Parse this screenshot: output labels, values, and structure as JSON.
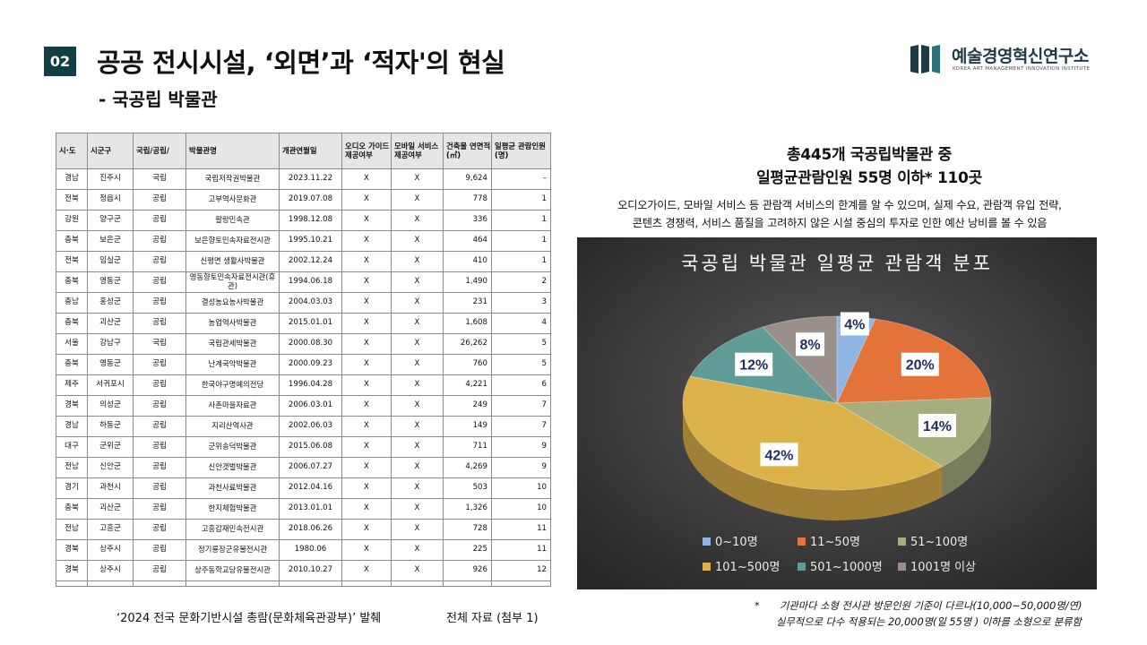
{
  "header": {
    "section_number": "02",
    "title": "공공 전시시설, ‘외면’과 ‘적자'의 현실",
    "subtitle": "- 국공립 박물관"
  },
  "logo": {
    "name": "예술경영혁신연구소",
    "sub": "KOREA ART MANAGEMENT INNOVATION INSTITUTE"
  },
  "table": {
    "headers": [
      "시·도",
      "시군구",
      "국립/공립/",
      "박물관명",
      "개관연월일",
      "오디오 가이드 제공여부",
      "모바일 서비스 제공여부",
      "건축물 연면적 (㎡)",
      "일평균 관람인원 (명)"
    ],
    "rows": [
      [
        "경남",
        "진주시",
        "국립",
        "국립저작권박물관",
        "2023.11.22",
        "X",
        "X",
        "9,624",
        "–"
      ],
      [
        "전북",
        "정읍시",
        "공립",
        "고부역사문화관",
        "2019.07.08",
        "X",
        "X",
        "778",
        "1"
      ],
      [
        "강원",
        "양구군",
        "공립",
        "팔랑민속관",
        "1998.12.08",
        "X",
        "X",
        "336",
        "1"
      ],
      [
        "충북",
        "보은군",
        "공립",
        "보은향토민속자료전시관",
        "1995.10.21",
        "X",
        "X",
        "464",
        "1"
      ],
      [
        "전북",
        "임실군",
        "공립",
        "신평면 생활사박물관",
        "2002.12.24",
        "X",
        "X",
        "410",
        "1"
      ],
      [
        "충북",
        "영동군",
        "공립",
        "영동향토민속자료전시관(휴관)",
        "1994.06.18",
        "X",
        "X",
        "1,490",
        "2"
      ],
      [
        "충남",
        "홍성군",
        "공립",
        "결성농요농사박물관",
        "2004.03.03",
        "X",
        "X",
        "231",
        "3"
      ],
      [
        "충북",
        "괴산군",
        "공립",
        "농업역사박물관",
        "2015.01.01",
        "X",
        "X",
        "1,608",
        "4"
      ],
      [
        "서울",
        "강남구",
        "국립",
        "국립관세박물관",
        "2000.08.30",
        "X",
        "X",
        "26,262",
        "5"
      ],
      [
        "충북",
        "영동군",
        "공립",
        "난계국악박물관",
        "2000.09.23",
        "X",
        "X",
        "760",
        "5"
      ],
      [
        "제주",
        "서귀포시",
        "공립",
        "한국야구명예의전당",
        "1996.04.28",
        "X",
        "X",
        "4,221",
        "6"
      ],
      [
        "경북",
        "의성군",
        "공립",
        "사촌마을자료관",
        "2006.03.01",
        "X",
        "X",
        "249",
        "7"
      ],
      [
        "경남",
        "하동군",
        "공립",
        "지리산역사관",
        "2002.06.03",
        "X",
        "X",
        "149",
        "7"
      ],
      [
        "대구",
        "군위군",
        "공립",
        "군위송덕박물관",
        "2015.06.08",
        "X",
        "X",
        "711",
        "9"
      ],
      [
        "전남",
        "신안군",
        "공립",
        "신안갯벌박물관",
        "2006.07.27",
        "X",
        "X",
        "4,269",
        "9"
      ],
      [
        "경기",
        "과천시",
        "공립",
        "과천사료박물관",
        "2012.04.16",
        "X",
        "X",
        "503",
        "10"
      ],
      [
        "충북",
        "괴산군",
        "공립",
        "한지체험박물관",
        "2013.01.01",
        "X",
        "X",
        "1,326",
        "10"
      ],
      [
        "전남",
        "고흥군",
        "공립",
        "고흥갑재민속전시관",
        "2018.06.26",
        "X",
        "X",
        "728",
        "11"
      ],
      [
        "경북",
        "상주시",
        "공립",
        "정기룡장군유물전시관",
        "1980.06",
        "X",
        "X",
        "225",
        "11"
      ],
      [
        "경북",
        "상주시",
        "공립",
        "상주동학교당유물전시관",
        "2010.10.27",
        "X",
        "X",
        "926",
        "12"
      ]
    ]
  },
  "source": "‘2024 전국 문화기반시설 총람(문화체육관광부)’ 발췌",
  "appendix": "전체 자료 (첨부 1)",
  "headline": {
    "line1": "총445개 국공립박물관 중",
    "line2": "일평균관람인원   55명 이하*  110곳"
  },
  "description": {
    "line1": "오디오가이드, 모바일 서비스 등 관람객 서비스의 한계를 알 수 있으며, 실제 수요, 관람객 유입 전략,",
    "line2": "콘텐츠 경쟁력, 서비스 품질을 고려하지 않은 시설 중심의 투자로 인한 예산 낭비를 볼 수 있음"
  },
  "chart_data": {
    "type": "pie",
    "title": "국공립 박물관 일평균 관람객 분포",
    "categories": [
      "0~10명",
      "11~50명",
      "51~100명",
      "101~500명",
      "501~1000명",
      "1001명 이상"
    ],
    "values": [
      4,
      20,
      14,
      42,
      12,
      8
    ],
    "labels": [
      "4%",
      "20%",
      "14%",
      "42%",
      "12%",
      "8%"
    ],
    "colors": [
      "#8db4e2",
      "#e4733a",
      "#a7ae7e",
      "#ddb24b",
      "#5f9c97",
      "#9a8f8a"
    ],
    "style": "3d",
    "legend_position": "bottom"
  },
  "footnote": {
    "star": "*",
    "line1": "기관마다 소형 전시관 방문인원 기준이 다르나(10,000~50,000명/연)",
    "line2": "실무적으로 다수 적용되는 20,000명(일 55명 ) 이하를 소형으로 분류함"
  }
}
